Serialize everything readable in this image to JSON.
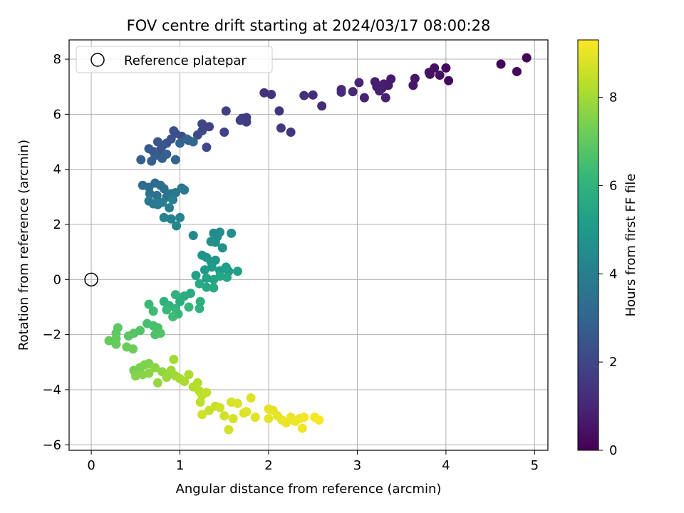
{
  "chart_data": {
    "type": "scatter",
    "title": "FOV centre drift starting at 2024/03/17 08:00:28",
    "xlabel": "Angular distance from reference (arcmin)",
    "ylabel": "Rotation from reference (arcmin)",
    "xlim": [
      -0.25,
      5.15
    ],
    "ylim": [
      -6.2,
      8.7
    ],
    "xticks": [
      0,
      1,
      2,
      3,
      4,
      5
    ],
    "yticks": [
      -6,
      -4,
      -2,
      0,
      2,
      4,
      6,
      8
    ],
    "grid": true,
    "legend": {
      "position": "top-left",
      "entries": [
        "Reference platepar"
      ]
    },
    "reference_point": {
      "x": 0,
      "y": 0,
      "marker": "open-circle"
    },
    "colorbar": {
      "label": "Hours from first FF file",
      "colormap": "viridis",
      "range": [
        0,
        9.3
      ],
      "ticks": [
        0,
        2,
        4,
        6,
        8
      ]
    },
    "series": [
      {
        "points": [
          {
            "x": 4.91,
            "y": 8.05,
            "t": 0.02
          },
          {
            "x": 4.62,
            "y": 7.82,
            "t": 0.1
          },
          {
            "x": 4.8,
            "y": 7.55,
            "t": 0.15
          },
          {
            "x": 4.0,
            "y": 7.68,
            "t": 0.25
          },
          {
            "x": 4.03,
            "y": 7.22,
            "t": 0.3
          },
          {
            "x": 3.93,
            "y": 7.42,
            "t": 0.35
          },
          {
            "x": 3.87,
            "y": 7.68,
            "t": 0.4
          },
          {
            "x": 3.82,
            "y": 7.45,
            "t": 0.45
          },
          {
            "x": 3.81,
            "y": 7.52,
            "t": 0.5
          },
          {
            "x": 3.65,
            "y": 7.3,
            "t": 0.55
          },
          {
            "x": 3.63,
            "y": 7.05,
            "t": 0.6
          },
          {
            "x": 3.38,
            "y": 7.28,
            "t": 0.65
          },
          {
            "x": 3.35,
            "y": 7.05,
            "t": 0.68
          },
          {
            "x": 3.3,
            "y": 7.1,
            "t": 0.72
          },
          {
            "x": 3.28,
            "y": 6.95,
            "t": 0.75
          },
          {
            "x": 3.22,
            "y": 7.0,
            "t": 0.78
          },
          {
            "x": 3.2,
            "y": 7.18,
            "t": 0.8
          },
          {
            "x": 3.25,
            "y": 6.85,
            "t": 0.82
          },
          {
            "x": 3.32,
            "y": 6.6,
            "t": 0.85
          },
          {
            "x": 3.08,
            "y": 6.6,
            "t": 0.9
          },
          {
            "x": 3.02,
            "y": 7.15,
            "t": 0.95
          },
          {
            "x": 2.95,
            "y": 6.82,
            "t": 1.0
          },
          {
            "x": 2.82,
            "y": 6.9,
            "t": 1.05
          },
          {
            "x": 2.82,
            "y": 6.8,
            "t": 1.1
          },
          {
            "x": 2.6,
            "y": 6.3,
            "t": 1.15
          },
          {
            "x": 2.5,
            "y": 6.7,
            "t": 1.2
          },
          {
            "x": 2.4,
            "y": 6.68,
            "t": 1.25
          },
          {
            "x": 2.03,
            "y": 6.72,
            "t": 1.3
          },
          {
            "x": 1.95,
            "y": 6.78,
            "t": 1.35
          },
          {
            "x": 2.12,
            "y": 6.12,
            "t": 1.4
          },
          {
            "x": 2.25,
            "y": 5.35,
            "t": 1.5
          },
          {
            "x": 2.14,
            "y": 5.5,
            "t": 1.55
          },
          {
            "x": 1.75,
            "y": 5.88,
            "t": 1.6
          },
          {
            "x": 1.7,
            "y": 5.85,
            "t": 1.65
          },
          {
            "x": 1.75,
            "y": 5.72,
            "t": 1.7
          },
          {
            "x": 1.68,
            "y": 5.78,
            "t": 1.75
          },
          {
            "x": 1.52,
            "y": 6.12,
            "t": 1.8
          },
          {
            "x": 1.5,
            "y": 5.35,
            "t": 1.85
          },
          {
            "x": 1.33,
            "y": 5.55,
            "t": 1.9
          },
          {
            "x": 1.25,
            "y": 5.65,
            "t": 1.95
          },
          {
            "x": 1.3,
            "y": 4.8,
            "t": 2.0
          },
          {
            "x": 1.25,
            "y": 5.4,
            "t": 2.05
          },
          {
            "x": 1.2,
            "y": 5.25,
            "t": 2.1
          },
          {
            "x": 1.1,
            "y": 5.05,
            "t": 2.15
          },
          {
            "x": 1.02,
            "y": 5.2,
            "t": 2.2
          },
          {
            "x": 0.95,
            "y": 5.3,
            "t": 2.25
          },
          {
            "x": 0.93,
            "y": 5.4,
            "t": 2.3
          },
          {
            "x": 0.9,
            "y": 5.1,
            "t": 2.35
          },
          {
            "x": 0.85,
            "y": 4.95,
            "t": 2.4
          },
          {
            "x": 0.8,
            "y": 4.85,
            "t": 2.45
          },
          {
            "x": 0.78,
            "y": 4.7,
            "t": 2.5
          },
          {
            "x": 0.75,
            "y": 5.0,
            "t": 2.55
          },
          {
            "x": 0.7,
            "y": 4.65,
            "t": 2.6
          },
          {
            "x": 0.65,
            "y": 4.75,
            "t": 2.65
          },
          {
            "x": 0.72,
            "y": 4.5,
            "t": 2.7
          },
          {
            "x": 0.68,
            "y": 4.3,
            "t": 2.75
          },
          {
            "x": 0.56,
            "y": 4.35,
            "t": 2.8
          },
          {
            "x": 0.8,
            "y": 4.4,
            "t": 2.85
          },
          {
            "x": 0.85,
            "y": 4.55,
            "t": 2.9
          },
          {
            "x": 0.95,
            "y": 4.35,
            "t": 2.95
          },
          {
            "x": 1.0,
            "y": 4.95,
            "t": 3.0
          },
          {
            "x": 1.08,
            "y": 5.1,
            "t": 3.05
          },
          {
            "x": 1.15,
            "y": 5.0,
            "t": 3.1
          },
          {
            "x": 0.58,
            "y": 3.42,
            "t": 3.2
          },
          {
            "x": 0.65,
            "y": 3.35,
            "t": 3.25
          },
          {
            "x": 0.72,
            "y": 3.5,
            "t": 3.3
          },
          {
            "x": 0.78,
            "y": 3.42,
            "t": 3.35
          },
          {
            "x": 0.82,
            "y": 3.3,
            "t": 3.4
          },
          {
            "x": 0.66,
            "y": 3.12,
            "t": 3.45
          },
          {
            "x": 0.74,
            "y": 3.05,
            "t": 3.5
          },
          {
            "x": 0.85,
            "y": 3.0,
            "t": 3.55
          },
          {
            "x": 0.9,
            "y": 3.12,
            "t": 3.6
          },
          {
            "x": 0.95,
            "y": 3.15,
            "t": 3.65
          },
          {
            "x": 1.02,
            "y": 3.32,
            "t": 3.7
          },
          {
            "x": 1.05,
            "y": 3.25,
            "t": 3.75
          },
          {
            "x": 0.65,
            "y": 2.85,
            "t": 3.8
          },
          {
            "x": 0.7,
            "y": 2.75,
            "t": 3.85
          },
          {
            "x": 0.75,
            "y": 2.72,
            "t": 3.9
          },
          {
            "x": 0.8,
            "y": 2.8,
            "t": 3.95
          },
          {
            "x": 0.88,
            "y": 2.6,
            "t": 4.0
          },
          {
            "x": 0.92,
            "y": 2.9,
            "t": 4.05
          },
          {
            "x": 0.82,
            "y": 2.25,
            "t": 4.1
          },
          {
            "x": 0.9,
            "y": 2.2,
            "t": 4.15
          },
          {
            "x": 1.0,
            "y": 2.25,
            "t": 4.2
          },
          {
            "x": 0.96,
            "y": 1.95,
            "t": 4.25
          },
          {
            "x": 1.15,
            "y": 1.6,
            "t": 4.35
          },
          {
            "x": 1.38,
            "y": 1.68,
            "t": 4.4
          },
          {
            "x": 1.42,
            "y": 1.55,
            "t": 4.45
          },
          {
            "x": 1.45,
            "y": 1.72,
            "t": 4.5
          },
          {
            "x": 1.58,
            "y": 1.68,
            "t": 4.55
          },
          {
            "x": 1.35,
            "y": 1.38,
            "t": 4.6
          },
          {
            "x": 1.4,
            "y": 1.35,
            "t": 4.65
          },
          {
            "x": 1.48,
            "y": 1.15,
            "t": 4.7
          },
          {
            "x": 1.25,
            "y": 0.88,
            "t": 4.8
          },
          {
            "x": 1.3,
            "y": 0.8,
            "t": 4.85
          },
          {
            "x": 1.35,
            "y": 0.65,
            "t": 4.9
          },
          {
            "x": 1.4,
            "y": 0.7,
            "t": 4.95
          },
          {
            "x": 1.28,
            "y": 0.35,
            "t": 5.0
          },
          {
            "x": 1.36,
            "y": 0.45,
            "t": 5.05
          },
          {
            "x": 1.45,
            "y": 0.32,
            "t": 5.1
          },
          {
            "x": 1.52,
            "y": 0.45,
            "t": 5.15
          },
          {
            "x": 1.55,
            "y": 0.3,
            "t": 5.2
          },
          {
            "x": 1.65,
            "y": 0.3,
            "t": 5.25
          },
          {
            "x": 1.18,
            "y": 0.15,
            "t": 5.3
          },
          {
            "x": 1.3,
            "y": 0.05,
            "t": 5.35
          },
          {
            "x": 1.38,
            "y": 0.0,
            "t": 5.4
          },
          {
            "x": 1.45,
            "y": 0.12,
            "t": 5.45
          },
          {
            "x": 1.53,
            "y": 0.08,
            "t": 5.5
          },
          {
            "x": 1.38,
            "y": -0.3,
            "t": 5.55
          },
          {
            "x": 1.3,
            "y": -0.28,
            "t": 5.6
          },
          {
            "x": 1.22,
            "y": -0.15,
            "t": 5.65
          },
          {
            "x": 1.12,
            "y": -0.5,
            "t": 5.7
          },
          {
            "x": 1.05,
            "y": -0.6,
            "t": 5.75
          },
          {
            "x": 1.0,
            "y": -0.8,
            "t": 5.8
          },
          {
            "x": 1.23,
            "y": -0.8,
            "t": 5.85
          },
          {
            "x": 1.22,
            "y": -1.05,
            "t": 5.9
          },
          {
            "x": 0.95,
            "y": -0.55,
            "t": 5.95
          },
          {
            "x": 0.82,
            "y": -0.8,
            "t": 6.0
          },
          {
            "x": 0.88,
            "y": -0.95,
            "t": 6.05
          },
          {
            "x": 0.95,
            "y": -1.05,
            "t": 6.1
          },
          {
            "x": 1.1,
            "y": -1.0,
            "t": 6.15
          },
          {
            "x": 0.98,
            "y": -1.25,
            "t": 6.2
          },
          {
            "x": 0.85,
            "y": -1.1,
            "t": 6.25
          },
          {
            "x": 0.65,
            "y": -0.9,
            "t": 6.3
          },
          {
            "x": 0.7,
            "y": -1.15,
            "t": 6.35
          },
          {
            "x": 0.92,
            "y": -1.35,
            "t": 6.4
          },
          {
            "x": 0.63,
            "y": -1.6,
            "t": 6.5
          },
          {
            "x": 0.7,
            "y": -1.68,
            "t": 6.55
          },
          {
            "x": 0.75,
            "y": -1.75,
            "t": 6.6
          },
          {
            "x": 0.72,
            "y": -2.0,
            "t": 6.65
          },
          {
            "x": 0.78,
            "y": -1.95,
            "t": 6.7
          },
          {
            "x": 0.55,
            "y": -1.85,
            "t": 6.75
          },
          {
            "x": 0.48,
            "y": -1.95,
            "t": 6.8
          },
          {
            "x": 0.42,
            "y": -2.05,
            "t": 6.85
          },
          {
            "x": 0.3,
            "y": -1.75,
            "t": 6.9
          },
          {
            "x": 0.28,
            "y": -1.95,
            "t": 6.95
          },
          {
            "x": 0.28,
            "y": -2.15,
            "t": 7.0
          },
          {
            "x": 0.2,
            "y": -2.22,
            "t": 7.05
          },
          {
            "x": 0.28,
            "y": -2.35,
            "t": 7.1
          },
          {
            "x": 0.4,
            "y": -2.45,
            "t": 7.15
          },
          {
            "x": 0.47,
            "y": -2.52,
            "t": 7.2
          },
          {
            "x": 0.48,
            "y": -3.3,
            "t": 7.35
          },
          {
            "x": 0.55,
            "y": -3.2,
            "t": 7.4
          },
          {
            "x": 0.6,
            "y": -3.1,
            "t": 7.45
          },
          {
            "x": 0.65,
            "y": -3.05,
            "t": 7.5
          },
          {
            "x": 0.5,
            "y": -3.5,
            "t": 7.55
          },
          {
            "x": 0.58,
            "y": -3.45,
            "t": 7.6
          },
          {
            "x": 0.65,
            "y": -3.4,
            "t": 7.65
          },
          {
            "x": 0.72,
            "y": -3.2,
            "t": 7.7
          },
          {
            "x": 0.8,
            "y": -3.35,
            "t": 7.75
          },
          {
            "x": 0.75,
            "y": -3.75,
            "t": 7.8
          },
          {
            "x": 0.85,
            "y": -3.55,
            "t": 7.85
          },
          {
            "x": 0.9,
            "y": -3.3,
            "t": 7.9
          },
          {
            "x": 0.95,
            "y": -3.5,
            "t": 7.95
          },
          {
            "x": 0.93,
            "y": -2.9,
            "t": 8.0
          },
          {
            "x": 1.0,
            "y": -3.6,
            "t": 8.05
          },
          {
            "x": 1.05,
            "y": -3.7,
            "t": 8.1
          },
          {
            "x": 1.1,
            "y": -3.45,
            "t": 8.15
          },
          {
            "x": 1.15,
            "y": -3.9,
            "t": 8.2
          },
          {
            "x": 1.2,
            "y": -3.75,
            "t": 8.25
          },
          {
            "x": 1.22,
            "y": -4.05,
            "t": 8.3
          },
          {
            "x": 1.25,
            "y": -4.2,
            "t": 8.35
          },
          {
            "x": 1.23,
            "y": -4.45,
            "t": 8.4
          },
          {
            "x": 1.3,
            "y": -4.1,
            "t": 8.45
          },
          {
            "x": 1.33,
            "y": -4.75,
            "t": 8.5
          },
          {
            "x": 1.4,
            "y": -4.6,
            "t": 8.55
          },
          {
            "x": 1.45,
            "y": -4.65,
            "t": 8.6
          },
          {
            "x": 1.25,
            "y": -4.9,
            "t": 8.62
          },
          {
            "x": 1.5,
            "y": -4.95,
            "t": 8.65
          },
          {
            "x": 1.55,
            "y": -5.45,
            "t": 8.7
          },
          {
            "x": 1.6,
            "y": -5.05,
            "t": 8.72
          },
          {
            "x": 1.58,
            "y": -4.45,
            "t": 8.75
          },
          {
            "x": 1.65,
            "y": -4.5,
            "t": 8.78
          },
          {
            "x": 1.72,
            "y": -4.85,
            "t": 8.8
          },
          {
            "x": 1.75,
            "y": -4.8,
            "t": 8.82
          },
          {
            "x": 1.8,
            "y": -4.3,
            "t": 8.85
          },
          {
            "x": 1.85,
            "y": -5.0,
            "t": 8.88
          },
          {
            "x": 2.0,
            "y": -4.7,
            "t": 8.9
          },
          {
            "x": 2.05,
            "y": -4.75,
            "t": 8.92
          },
          {
            "x": 2.0,
            "y": -5.05,
            "t": 8.95
          },
          {
            "x": 2.1,
            "y": -4.95,
            "t": 8.97
          },
          {
            "x": 2.15,
            "y": -5.1,
            "t": 9.0
          },
          {
            "x": 2.2,
            "y": -5.2,
            "t": 9.02
          },
          {
            "x": 2.25,
            "y": -5.0,
            "t": 9.05
          },
          {
            "x": 2.3,
            "y": -5.15,
            "t": 9.07
          },
          {
            "x": 2.35,
            "y": -5.05,
            "t": 9.1
          },
          {
            "x": 2.38,
            "y": -5.4,
            "t": 9.12
          },
          {
            "x": 2.4,
            "y": -5.0,
            "t": 9.15
          },
          {
            "x": 2.52,
            "y": -5.0,
            "t": 9.2
          },
          {
            "x": 2.57,
            "y": -5.1,
            "t": 9.25
          }
        ]
      }
    ]
  }
}
